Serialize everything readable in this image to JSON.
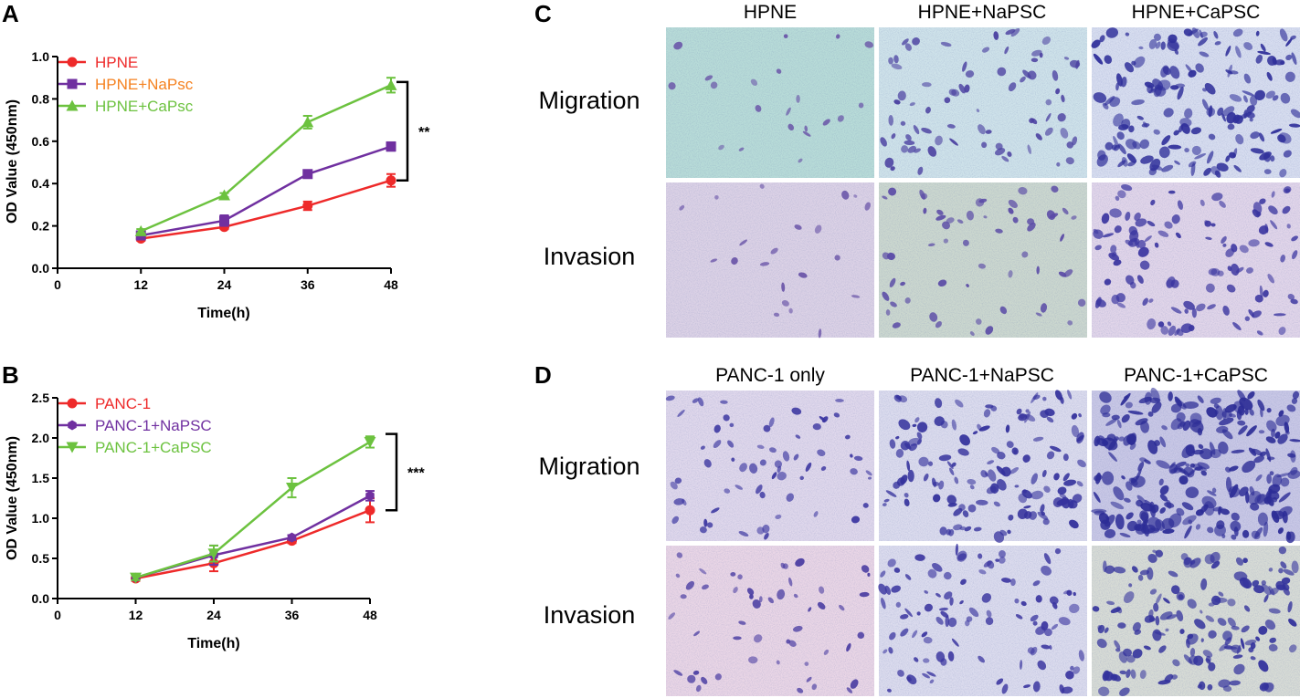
{
  "colors": {
    "red": "#ee2a2a",
    "purple": "#7030a0",
    "green": "#6cc23f",
    "orange": "#f58220"
  },
  "chart_data": [
    {
      "panel": "A",
      "type": "line",
      "xlabel": "Time(h)",
      "ylabel": "OD Value (450nm)",
      "xlim": [
        0,
        48
      ],
      "ylim": [
        0,
        1.0
      ],
      "xticks": [
        "0",
        "12",
        "24",
        "36",
        "48"
      ],
      "yticks": [
        "0.0",
        "0.2",
        "0.4",
        "0.6",
        "0.8",
        "1.0"
      ],
      "x": [
        12,
        24,
        36,
        48
      ],
      "series": [
        {
          "name": "HPNE",
          "marker": "circle",
          "color": "#ee2a2a",
          "label_color": "#ee2a2a",
          "values": [
            0.14,
            0.195,
            0.295,
            0.415
          ],
          "errors": [
            0.01,
            0.01,
            0.02,
            0.03
          ]
        },
        {
          "name": "HPNE+NaPsc",
          "marker": "square",
          "color": "#7030a0",
          "label_color": "#f58220",
          "values": [
            0.155,
            0.225,
            0.445,
            0.575
          ],
          "errors": [
            0.01,
            0.025,
            0.015,
            0.02
          ]
        },
        {
          "name": "HPNE+CaPsc",
          "marker": "triangle-up",
          "color": "#6cc23f",
          "label_color": "#6cc23f",
          "values": [
            0.175,
            0.345,
            0.69,
            0.865
          ],
          "errors": [
            0.01,
            0.01,
            0.03,
            0.035
          ]
        }
      ],
      "significance": "**",
      "sig_range": [
        0.415,
        0.88
      ]
    },
    {
      "panel": "B",
      "type": "line",
      "xlabel": "Time(h)",
      "ylabel": "OD Value (450nm)",
      "xlim": [
        0,
        48
      ],
      "ylim": [
        0,
        2.5
      ],
      "xticks": [
        "0",
        "12",
        "24",
        "36",
        "48"
      ],
      "yticks": [
        "0.0",
        "0.5",
        "1.0",
        "1.5",
        "2.0",
        "2.5"
      ],
      "x": [
        12,
        24,
        36,
        48
      ],
      "series": [
        {
          "name": "PANC-1",
          "marker": "circle",
          "color": "#ee2a2a",
          "label_color": "#ee2a2a",
          "values": [
            0.25,
            0.44,
            0.72,
            1.1
          ],
          "errors": [
            0.03,
            0.1,
            0.03,
            0.15
          ]
        },
        {
          "name": "PANC-1+NaPSC",
          "marker": "hexagon",
          "color": "#7030a0",
          "label_color": "#7030a0",
          "values": [
            0.26,
            0.54,
            0.76,
            1.28
          ],
          "errors": [
            0.03,
            0.12,
            0.03,
            0.06
          ]
        },
        {
          "name": "PANC-1+CaPSC",
          "marker": "triangle-down",
          "color": "#6cc23f",
          "label_color": "#6cc23f",
          "values": [
            0.26,
            0.56,
            1.38,
            1.95
          ],
          "errors": [
            0.03,
            0.1,
            0.12,
            0.07
          ]
        }
      ],
      "significance": "***",
      "sig_range": [
        1.1,
        2.05
      ]
    }
  ],
  "panels": {
    "C": {
      "letter": "C",
      "columns": [
        "HPNE",
        "HPNE+NaPSC",
        "HPNE+CaPSC"
      ],
      "rows": [
        "Migration",
        "Invasion"
      ]
    },
    "D": {
      "letter": "D",
      "columns": [
        "PANC-1 only",
        "PANC-1+NaPSC",
        "PANC-1+CaPSC"
      ],
      "rows": [
        "Migration",
        "Invasion"
      ]
    }
  },
  "micrographs": {
    "C": [
      [
        {
          "bg": "#b8dcd8",
          "density": 0.08,
          "cell": "#6a55a8"
        },
        {
          "bg": "#cfe3ea",
          "density": 0.3,
          "cell": "#4a3fa0"
        },
        {
          "bg": "#d8def0",
          "density": 0.65,
          "cell": "#2f2f9a"
        }
      ],
      [
        {
          "bg": "#dcd2e6",
          "density": 0.08,
          "cell": "#6a55a8"
        },
        {
          "bg": "#ccd8cf",
          "density": 0.22,
          "cell": "#5a4aa6"
        },
        {
          "bg": "#e2d6ea",
          "density": 0.45,
          "cell": "#3b36a0"
        }
      ]
    ],
    "D": [
      [
        {
          "bg": "#e0d8ec",
          "density": 0.25,
          "cell": "#3a35a0"
        },
        {
          "bg": "#dcdcee",
          "density": 0.55,
          "cell": "#34319c"
        },
        {
          "bg": "#c9c8e6",
          "density": 0.95,
          "cell": "#2c2c96"
        }
      ],
      [
        {
          "bg": "#ead6e6",
          "density": 0.2,
          "cell": "#4a3da2"
        },
        {
          "bg": "#dcdcee",
          "density": 0.4,
          "cell": "#3b36a0"
        },
        {
          "bg": "#d8dcd6",
          "density": 0.6,
          "cell": "#33329c"
        }
      ]
    ]
  }
}
